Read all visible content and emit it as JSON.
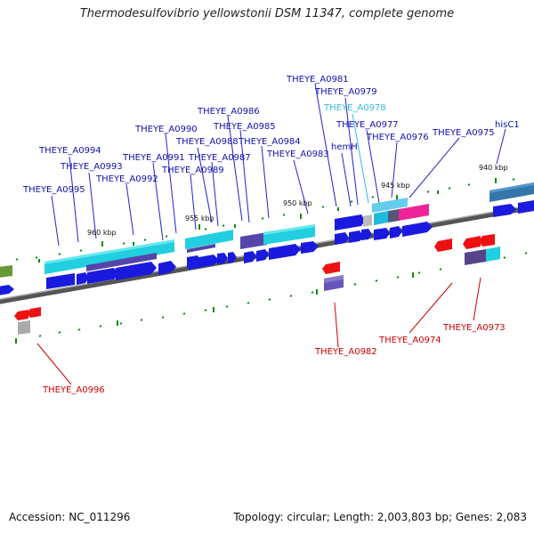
{
  "title": "Thermodesulfovibrio yellowstonii DSM 11347, complete genome",
  "footer": {
    "accession": "Accession: NC_011296",
    "topology": "Topology: circular; Length: 2,003,803 bp; Genes: 2,083"
  },
  "colors": {
    "forward_label": "#1010b0",
    "reverse_label": "#cc0000",
    "highlight_label": "#33bbdd",
    "cds_forward": "#1a1adf",
    "cds_reverse": "#ee1111",
    "backbone": "#777777"
  },
  "scale": {
    "ticks": [
      "960 kbp",
      "955 kbp",
      "950 kbp",
      "945 kbp",
      "940 kbp"
    ]
  },
  "genes_forward": [
    "THEYE_A0995",
    "THEYE_A0994",
    "THEYE_A0993",
    "THEYE_A0992",
    "THEYE_A0991",
    "THEYE_A0990",
    "THEYE_A0989",
    "THEYE_A0988",
    "THEYE_A0987",
    "THEYE_A0986",
    "THEYE_A0985",
    "THEYE_A0984",
    "THEYE_A0983",
    "THEYE_A0981",
    "THEYE_A0979",
    "THEYE_A0978",
    "hemH",
    "THEYE_A0977",
    "THEYE_A0976",
    "THEYE_A0975",
    "hisC1"
  ],
  "genes_reverse": [
    "THEYE_A0996",
    "THEYE_A0982",
    "THEYE_A0974",
    "THEYE_A0973"
  ]
}
